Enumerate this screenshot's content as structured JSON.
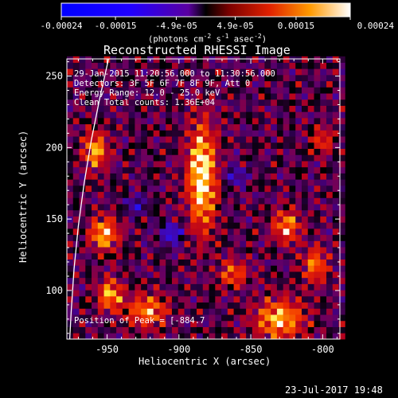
{
  "chart_data": {
    "type": "heatmap",
    "title": "Reconstructed RHESSI Image",
    "xlabel": "Heliocentric X (arcsec)",
    "ylabel": "Heliocentric Y (arcsec)",
    "xlim": [
      -978,
      -788
    ],
    "ylim": [
      66,
      262
    ],
    "xticks": [
      -950,
      -900,
      -850,
      -800
    ],
    "xtick_labels": [
      "-950",
      "-900",
      "-850",
      "-800"
    ],
    "yticks": [
      100,
      150,
      200,
      250
    ],
    "ytick_labels": [
      "100",
      "150",
      "200",
      "250"
    ],
    "colorbar": {
      "range": [
        -0.00024,
        0.00024
      ],
      "ticks": [
        -0.00024,
        -0.00015,
        -4.9e-05,
        4.9e-05,
        0.00015,
        0.00024
      ],
      "tick_labels": [
        "-0.00024",
        "-0.00015",
        "-4.9e-05",
        "4.9e-05",
        "0.00015",
        "0.00024"
      ],
      "units_line1": "(photons cm",
      "units_exp1": "-2",
      "units_mid": " s",
      "units_exp2": "-1",
      "units_mid2": " asec",
      "units_exp3": "-2",
      "units_end": ")"
    },
    "annotations": [
      "29-Jan-2015 11:20:56.000 to 11:30:56.000",
      "Detectors: 3F 5F 6F 7F 8F 9F, Att 0",
      "Energy Range: 12.0 - 25.0 keV",
      "Clean   Total counts: 1.36E+04"
    ],
    "peak_label": "Position of Peak = [-884.7",
    "sources": [
      {
        "x": -884,
        "y": 180,
        "sx": 7,
        "sy": 26,
        "amp": 0.000235
      },
      {
        "x": -958,
        "y": 198,
        "sx": 6,
        "sy": 9,
        "amp": 0.000175
      },
      {
        "x": -952,
        "y": 140,
        "sx": 7,
        "sy": 8,
        "amp": 0.000195
      },
      {
        "x": -948,
        "y": 97,
        "sx": 6,
        "sy": 8,
        "amp": 0.000175
      },
      {
        "x": -922,
        "y": 86,
        "sx": 10,
        "sy": 8,
        "amp": 0.00016
      },
      {
        "x": -830,
        "y": 80,
        "sx": 12,
        "sy": 10,
        "amp": 0.000185
      },
      {
        "x": -825,
        "y": 145,
        "sx": 7,
        "sy": 8,
        "amp": 0.00016
      },
      {
        "x": -805,
        "y": 118,
        "sx": 6,
        "sy": 9,
        "amp": 0.00015
      },
      {
        "x": -862,
        "y": 112,
        "sx": 7,
        "sy": 7,
        "amp": 0.00013
      },
      {
        "x": -800,
        "y": 205,
        "sx": 5,
        "sy": 7,
        "amp": 0.00011
      },
      {
        "x": -905,
        "y": 140,
        "sx": 5,
        "sy": 5,
        "amp": -0.00017
      },
      {
        "x": -930,
        "y": 160,
        "sx": 5,
        "sy": 5,
        "amp": -0.00011
      },
      {
        "x": -860,
        "y": 180,
        "sx": 5,
        "sy": 5,
        "amp": -0.00012
      }
    ],
    "limb_curve": [
      [
        -949,
        262
      ],
      [
        -955,
        235
      ],
      [
        -961,
        205
      ],
      [
        -966,
        175
      ],
      [
        -970,
        145
      ],
      [
        -973,
        115
      ],
      [
        -975,
        85
      ],
      [
        -976,
        66
      ]
    ]
  },
  "footer": {
    "timestamp": "23-Jul-2017 19:48"
  }
}
